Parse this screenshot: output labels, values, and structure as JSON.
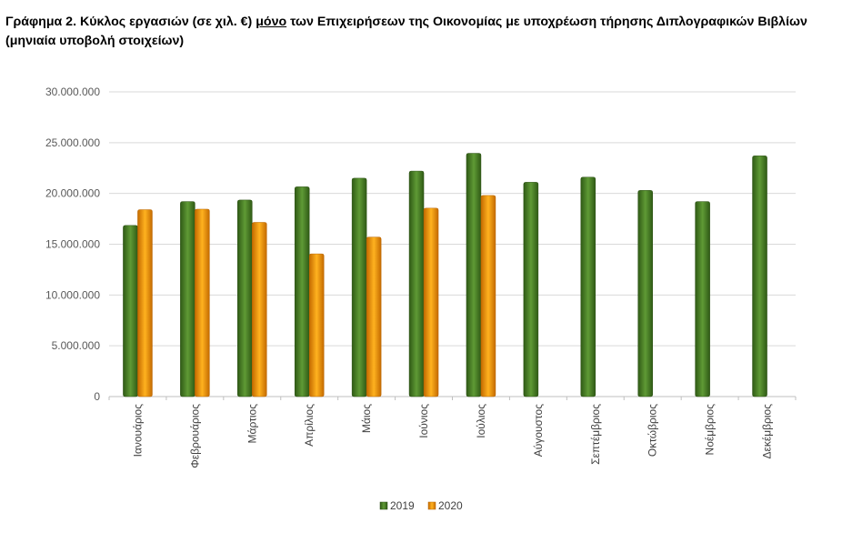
{
  "title": {
    "part1": "Γράφημα 2. Κύκλος εργασιών (σε χιλ. €) ",
    "underlined": "μόνο",
    "part2": " των Επιχειρήσεων της Οικονομίας με υποχρέωση τήρησης Διπλογραφικών Βιβλίων (μηνιαία υποβολή στοιχείων)"
  },
  "chart_data": {
    "type": "bar",
    "title": "Γράφημα 2. Κύκλος εργασιών (σε χιλ. €) μόνο των Επιχειρήσεων της Οικονομίας με υποχρέωση τήρησης Διπλογραφικών Βιβλίων (μηνιαία υποβολή στοιχείων)",
    "xlabel": "",
    "ylabel": "",
    "categories": [
      "Ιανουάριος",
      "Φεβρουάριος",
      "Μάρτιος",
      "Απρίλιος",
      "Μάιος",
      "Ιούνιος",
      "Ιούλιος",
      "Αύγουστος",
      "Σεπτέμβριος",
      "Οκτώβριος",
      "Νοέμβριος",
      "Δεκέμβριος"
    ],
    "series": [
      {
        "name": "2019",
        "color": "#4f7f2a",
        "values": [
          16850000,
          19200000,
          19350000,
          20650000,
          21500000,
          22200000,
          23950000,
          21100000,
          21600000,
          20300000,
          19200000,
          23700000
        ]
      },
      {
        "name": "2020",
        "color": "#f29a0f",
        "values": [
          18400000,
          18450000,
          17150000,
          14050000,
          15700000,
          18550000,
          19800000,
          null,
          null,
          null,
          null,
          null
        ]
      }
    ],
    "ylim": [
      0,
      30000000
    ],
    "yticks": [
      0,
      5000000,
      10000000,
      15000000,
      20000000,
      25000000,
      30000000
    ],
    "ytick_labels": [
      "0",
      "5.000.000",
      "10.000.000",
      "15.000.000",
      "20.000.000",
      "25.000.000",
      "30.000.000"
    ],
    "grid": true,
    "legend_position": "bottom"
  }
}
